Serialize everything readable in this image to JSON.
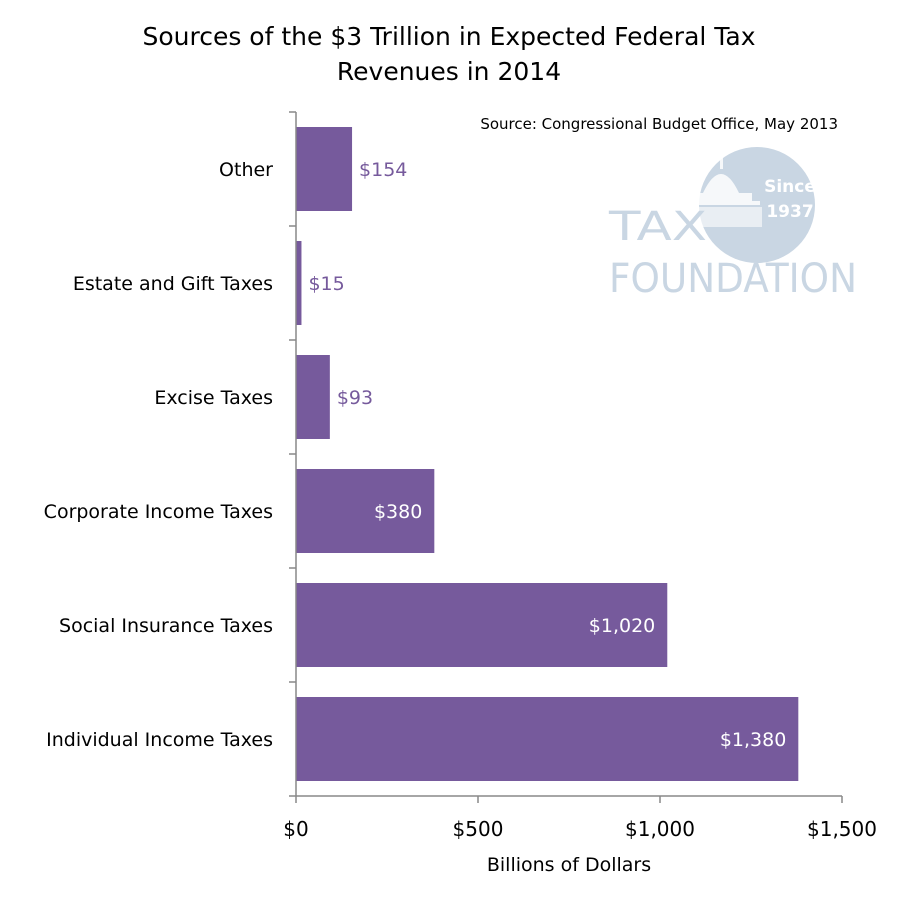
{
  "chart_data": {
    "type": "bar",
    "orientation": "horizontal",
    "title_line1": "Sources of the $3 Trillion in Expected Federal Tax",
    "title_line2": "Revenues in 2014",
    "source": "Source: Congressional Budget Office, May 2013",
    "xlabel": "Billions of Dollars",
    "ylabel": "",
    "xlim": [
      0,
      1500
    ],
    "x_ticks": [
      0,
      500,
      1000,
      1500
    ],
    "x_tick_labels": [
      "$0",
      "$500",
      "$1,000",
      "$1,500"
    ],
    "categories": [
      "Other",
      "Estate and Gift Taxes",
      "Excise Taxes",
      "Corporate Income Taxes",
      "Social Insurance Taxes",
      "Individual Income Taxes"
    ],
    "values": [
      154,
      15,
      93,
      380,
      1020,
      1380
    ],
    "data_labels": [
      "$154",
      "$15",
      "$93",
      "$380",
      "$1,020",
      "$1,380"
    ],
    "grid": false,
    "bar_color": "#765a9c"
  },
  "logo": {
    "line1": "TAX",
    "line2": "FOUNDATION",
    "badge_line1": "Since",
    "badge_line2": "1937",
    "color": "#c9d6e3"
  }
}
